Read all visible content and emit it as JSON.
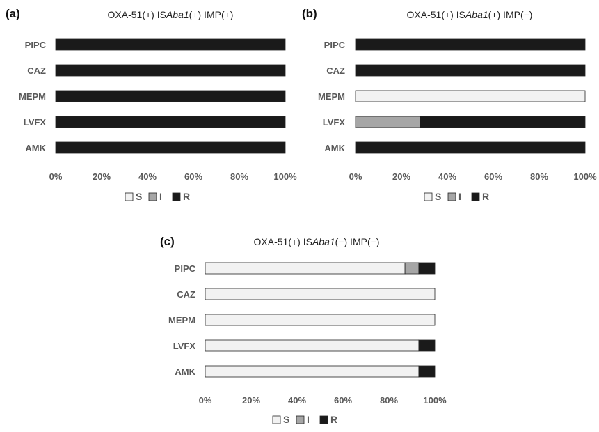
{
  "colors": {
    "S": "#f2f2f2",
    "I": "#a6a6a6",
    "R": "#1a1a1a",
    "stroke": "#222222"
  },
  "chart_data": [
    {
      "panel_label": "(a)",
      "type": "bar",
      "orientation": "horizontal",
      "stacked": true,
      "percent": true,
      "title_prefix": "OXA-51(+) IS",
      "title_italic": "Aba1",
      "title_suffix": "(+) IMP(+)",
      "categories": [
        "PIPC",
        "CAZ",
        "MEPM",
        "LVFX",
        "AMK"
      ],
      "series": [
        {
          "name": "S",
          "values": [
            0,
            0,
            0,
            0,
            0
          ]
        },
        {
          "name": "I",
          "values": [
            0,
            0,
            0,
            0,
            0
          ]
        },
        {
          "name": "R",
          "values": [
            100,
            100,
            100,
            100,
            100
          ]
        }
      ],
      "xticks": [
        "0%",
        "20%",
        "40%",
        "60%",
        "80%",
        "100%"
      ],
      "xlim": [
        0,
        100
      ],
      "grid": false,
      "legend": "bottom"
    },
    {
      "panel_label": "(b)",
      "type": "bar",
      "orientation": "horizontal",
      "stacked": true,
      "percent": true,
      "title_prefix": "OXA-51(+) IS",
      "title_italic": "Aba1",
      "title_suffix": "(+) IMP(−)",
      "categories": [
        "PIPC",
        "CAZ",
        "MEPM",
        "LVFX",
        "AMK"
      ],
      "series": [
        {
          "name": "S",
          "values": [
            0,
            0,
            100,
            0,
            0
          ]
        },
        {
          "name": "I",
          "values": [
            0,
            0,
            0,
            28,
            0
          ]
        },
        {
          "name": "R",
          "values": [
            100,
            100,
            0,
            72,
            100
          ]
        }
      ],
      "xticks": [
        "0%",
        "20%",
        "40%",
        "60%",
        "80%",
        "100%"
      ],
      "xlim": [
        0,
        100
      ],
      "grid": false,
      "legend": "bottom"
    },
    {
      "panel_label": "(c)",
      "type": "bar",
      "orientation": "horizontal",
      "stacked": true,
      "percent": true,
      "title_prefix": "OXA-51(+) IS",
      "title_italic": "Aba1",
      "title_suffix": "(−) IMP(−)",
      "categories": [
        "PIPC",
        "CAZ",
        "MEPM",
        "LVFX",
        "AMK"
      ],
      "series": [
        {
          "name": "S",
          "values": [
            87,
            100,
            100,
            93,
            93
          ]
        },
        {
          "name": "I",
          "values": [
            6,
            0,
            0,
            0,
            0
          ]
        },
        {
          "name": "R",
          "values": [
            7,
            0,
            0,
            7,
            7
          ]
        }
      ],
      "xticks": [
        "0%",
        "20%",
        "40%",
        "60%",
        "80%",
        "100%"
      ],
      "xlim": [
        0,
        100
      ],
      "grid": false,
      "legend": "bottom"
    }
  ]
}
